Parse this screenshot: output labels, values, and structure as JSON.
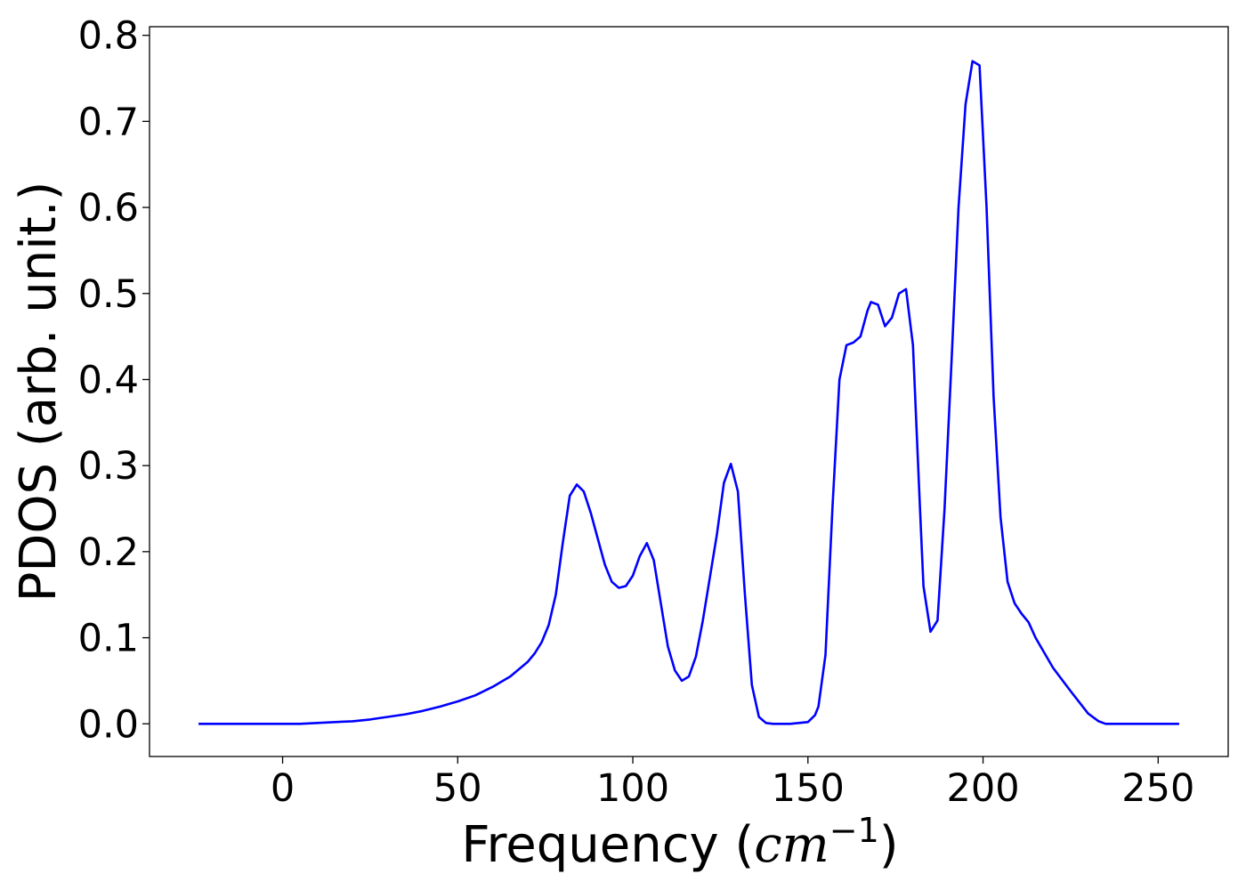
{
  "chart_data": {
    "type": "line",
    "xlabel": "Frequency (",
    "xlabel_unit": "cm",
    "xlabel_exp": "−1",
    "xlabel_close": ")",
    "ylabel": "PDOS (arb. unit.)",
    "xlim": [
      -38,
      270
    ],
    "ylim": [
      -0.038,
      0.81
    ],
    "xticks": [
      0,
      50,
      100,
      150,
      200,
      250
    ],
    "yticks": [
      0.0,
      0.1,
      0.2,
      0.3,
      0.4,
      0.5,
      0.6,
      0.7,
      0.8
    ],
    "xtick_labels": [
      "0",
      "50",
      "100",
      "150",
      "200",
      "250"
    ],
    "ytick_labels": [
      "0.0",
      "0.1",
      "0.2",
      "0.3",
      "0.4",
      "0.5",
      "0.6",
      "0.7",
      "0.8"
    ],
    "grid": false,
    "series": [
      {
        "color": "#0000ff",
        "x": [
          -24,
          -10,
          0,
          5,
          10,
          15,
          20,
          25,
          30,
          35,
          40,
          45,
          50,
          55,
          60,
          65,
          70,
          72,
          74,
          76,
          78,
          80,
          82,
          84,
          86,
          88,
          90,
          92,
          94,
          96,
          98,
          100,
          102,
          104,
          106,
          108,
          110,
          112,
          114,
          116,
          118,
          120,
          122,
          124,
          126,
          128,
          130,
          132,
          134,
          136,
          138,
          140,
          145,
          150,
          152,
          153,
          155,
          157,
          159,
          161,
          163,
          165,
          167,
          168,
          170,
          172,
          174,
          176,
          178,
          180,
          182,
          183,
          185,
          187,
          189,
          191,
          193,
          195,
          197,
          199,
          201,
          203,
          205,
          207,
          209,
          211,
          213,
          215,
          220,
          225,
          230,
          233,
          235,
          237,
          240,
          256
        ],
        "y": [
          0.0,
          0.0,
          0.0,
          0.0,
          0.001,
          0.002,
          0.003,
          0.005,
          0.008,
          0.011,
          0.015,
          0.02,
          0.026,
          0.033,
          0.043,
          0.055,
          0.072,
          0.082,
          0.095,
          0.115,
          0.15,
          0.21,
          0.265,
          0.278,
          0.27,
          0.245,
          0.215,
          0.185,
          0.165,
          0.158,
          0.16,
          0.172,
          0.195,
          0.21,
          0.19,
          0.14,
          0.09,
          0.062,
          0.05,
          0.055,
          0.078,
          0.12,
          0.17,
          0.22,
          0.28,
          0.302,
          0.27,
          0.15,
          0.045,
          0.008,
          0.001,
          0.0,
          0.0,
          0.002,
          0.01,
          0.02,
          0.08,
          0.25,
          0.4,
          0.44,
          0.443,
          0.45,
          0.48,
          0.49,
          0.487,
          0.462,
          0.472,
          0.5,
          0.505,
          0.44,
          0.25,
          0.16,
          0.107,
          0.12,
          0.25,
          0.42,
          0.6,
          0.72,
          0.77,
          0.765,
          0.6,
          0.38,
          0.24,
          0.165,
          0.14,
          0.128,
          0.118,
          0.1,
          0.065,
          0.038,
          0.012,
          0.003,
          0.0,
          0.0,
          0.0,
          0.0
        ]
      }
    ]
  }
}
